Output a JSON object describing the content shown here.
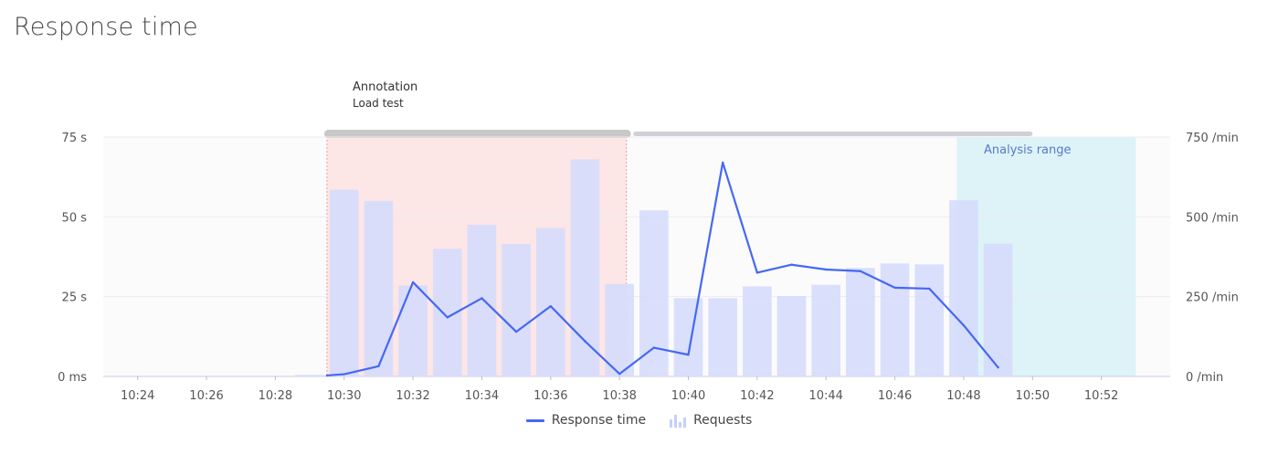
{
  "page": {
    "title": "Response time"
  },
  "annotation": {
    "title": "Annotation",
    "subtitle": "Load test"
  },
  "analysis_range": {
    "label": "Analysis range"
  },
  "legend": {
    "line_label": "Response time",
    "bars_label": "Requests"
  },
  "colors": {
    "line": "#4468f5",
    "bars": "#d6dcfb",
    "annotation_fill": "#fde6e6",
    "analysis_fill": "#ddf3f8",
    "annotation_bar": "#c8c8c8",
    "range_bar": "#cfd0d6"
  },
  "chart_data": {
    "type": "bar",
    "title": "Response time",
    "x_tick_labels": [
      "10:24",
      "10:26",
      "10:28",
      "10:30",
      "10:32",
      "10:34",
      "10:36",
      "10:38",
      "10:40",
      "10:42",
      "10:44",
      "10:46",
      "10:48",
      "10:50",
      "10:52"
    ],
    "x_range": [
      "10:23",
      "10:54"
    ],
    "y_left": {
      "ticks": [
        {
          "value": 0,
          "label": "0 ms"
        },
        {
          "value": 25,
          "label": "25 s"
        },
        {
          "value": 50,
          "label": "50 s"
        },
        {
          "value": 75,
          "label": "75 s"
        }
      ],
      "range": [
        0,
        75
      ],
      "unit": "s"
    },
    "y_right": {
      "ticks": [
        {
          "value": 0,
          "label": "0 /min"
        },
        {
          "value": 250,
          "label": "250 /min"
        },
        {
          "value": 500,
          "label": "500 /min"
        },
        {
          "value": 750,
          "label": "750 /min"
        }
      ],
      "range": [
        0,
        750
      ],
      "unit": "/min"
    },
    "grid": true,
    "legend_position": "bottom",
    "annotation_range": [
      "10:29.5",
      "10:38.2"
    ],
    "range_bar": [
      "10:38.4",
      "10:50"
    ],
    "analysis_range": [
      "10:47.8",
      "10:53"
    ],
    "series": [
      {
        "name": "Requests",
        "type": "bar",
        "axis": "right",
        "x": [
          "10:29",
          "10:30",
          "10:31",
          "10:32",
          "10:33",
          "10:34",
          "10:35",
          "10:36",
          "10:37",
          "10:38",
          "10:39",
          "10:40",
          "10:41",
          "10:42",
          "10:43",
          "10:44",
          "10:45",
          "10:46",
          "10:47",
          "10:48",
          "10:49"
        ],
        "values": [
          5,
          585,
          550,
          285,
          400,
          475,
          415,
          465,
          680,
          290,
          520,
          245,
          245,
          282,
          252,
          287,
          340,
          354,
          351,
          552,
          416
        ]
      },
      {
        "name": "Response time",
        "type": "line",
        "axis": "left",
        "x": [
          "10:29.5",
          "10:30",
          "10:31",
          "10:32",
          "10:33",
          "10:34",
          "10:35",
          "10:36",
          "10:37",
          "10:38",
          "10:39",
          "10:40",
          "10:41",
          "10:42",
          "10:43",
          "10:44",
          "10:45",
          "10:46",
          "10:47",
          "10:48",
          "10:49"
        ],
        "values": [
          0.3,
          0.7,
          3.2,
          29.5,
          18.5,
          24.5,
          14.0,
          22.0,
          11.0,
          0.8,
          9.0,
          6.8,
          67.0,
          32.5,
          35.0,
          33.5,
          33.0,
          27.8,
          27.5,
          16.0,
          2.8
        ]
      }
    ]
  }
}
